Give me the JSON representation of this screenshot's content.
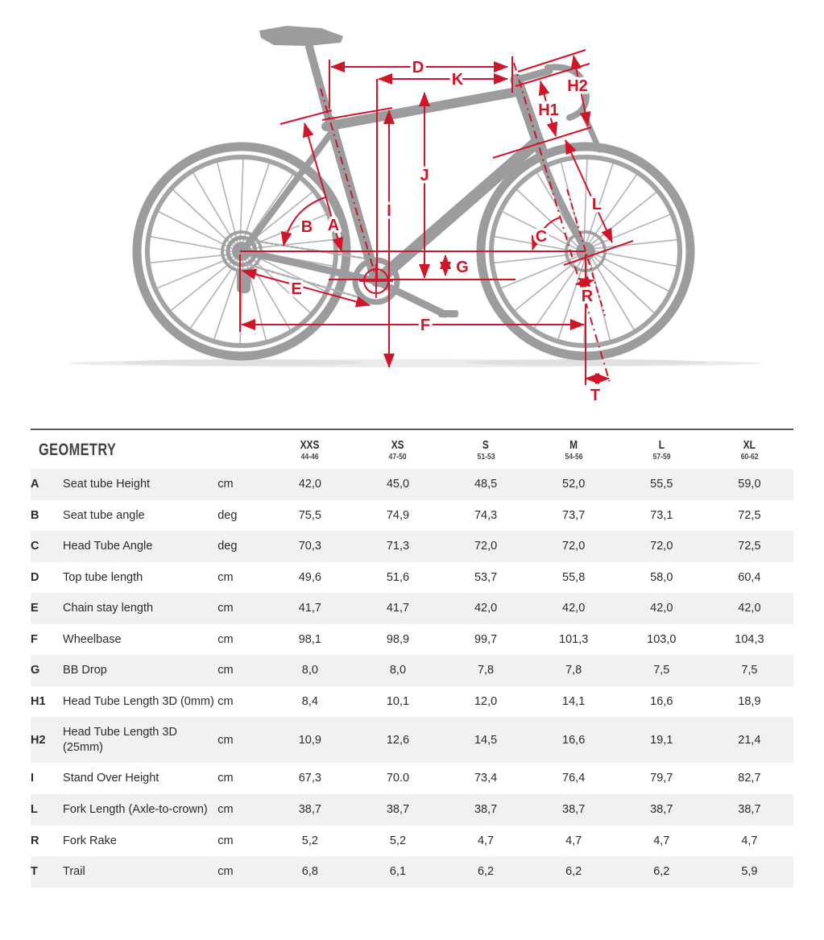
{
  "diagram": {
    "colors": {
      "bike": "#9c9c9e",
      "annotation": "#cf1527"
    },
    "labels": {
      "D": "D",
      "K": "K",
      "H2": "H2",
      "H1": "H1",
      "J": "J",
      "I": "I",
      "L": "L",
      "B": "B",
      "A": "A",
      "C": "C",
      "G": "G",
      "E": "E",
      "R": "R",
      "F": "F",
      "T": "T"
    }
  },
  "table": {
    "title": "GEOMETRY",
    "sizes": [
      {
        "label": "XXS",
        "range": "44-46"
      },
      {
        "label": "XS",
        "range": "47-50"
      },
      {
        "label": "S",
        "range": "51-53"
      },
      {
        "label": "M",
        "range": "54-56"
      },
      {
        "label": "L",
        "range": "57-59"
      },
      {
        "label": "XL",
        "range": "60-62"
      }
    ],
    "rows": [
      {
        "letter": "A",
        "name": "Seat tube Height",
        "unit": "cm",
        "values": [
          "42,0",
          "45,0",
          "48,5",
          "52,0",
          "55,5",
          "59,0"
        ]
      },
      {
        "letter": "B",
        "name": "Seat tube angle",
        "unit": "deg",
        "values": [
          "75,5",
          "74,9",
          "74,3",
          "73,7",
          "73,1",
          "72,5"
        ]
      },
      {
        "letter": "C",
        "name": "Head Tube Angle",
        "unit": "deg",
        "values": [
          "70,3",
          "71,3",
          "72,0",
          "72,0",
          "72,0",
          "72,5"
        ]
      },
      {
        "letter": "D",
        "name": "Top tube length",
        "unit": "cm",
        "values": [
          "49,6",
          "51,6",
          "53,7",
          "55,8",
          "58,0",
          "60,4"
        ]
      },
      {
        "letter": "E",
        "name": "Chain stay length",
        "unit": "cm",
        "values": [
          "41,7",
          "41,7",
          "42,0",
          "42,0",
          "42,0",
          "42,0"
        ]
      },
      {
        "letter": "F",
        "name": "Wheelbase",
        "unit": "cm",
        "values": [
          "98,1",
          "98,9",
          "99,7",
          "101,3",
          "103,0",
          "104,3"
        ]
      },
      {
        "letter": "G",
        "name": "BB Drop",
        "unit": "cm",
        "values": [
          "8,0",
          "8,0",
          "7,8",
          "7,8",
          "7,5",
          "7,5"
        ]
      },
      {
        "letter": "H1",
        "name": "Head Tube Length 3D (0mm)",
        "unit": "cm",
        "values": [
          "8,4",
          "10,1",
          "12,0",
          "14,1",
          "16,6",
          "18,9"
        ]
      },
      {
        "letter": "H2",
        "name": "Head Tube Length 3D (25mm)",
        "unit": "cm",
        "values": [
          "10,9",
          "12,6",
          "14,5",
          "16,6",
          "19,1",
          "21,4"
        ]
      },
      {
        "letter": "I",
        "name": "Stand Over Height",
        "unit": "cm",
        "values": [
          "67,3",
          "70.0",
          "73,4",
          "76,4",
          "79,7",
          "82,7"
        ]
      },
      {
        "letter": "L",
        "name": "Fork Length (Axle-to-crown)",
        "unit": "cm",
        "values": [
          "38,7",
          "38,7",
          "38,7",
          "38,7",
          "38,7",
          "38,7"
        ]
      },
      {
        "letter": "R",
        "name": "Fork Rake",
        "unit": "cm",
        "values": [
          "5,2",
          "5,2",
          "4,7",
          "4,7",
          "4,7",
          "4,7"
        ]
      },
      {
        "letter": "T",
        "name": "Trail",
        "unit": "cm",
        "values": [
          "6,8",
          "6,1",
          "6,2",
          "6,2",
          "6,2",
          "5,9"
        ]
      }
    ]
  }
}
